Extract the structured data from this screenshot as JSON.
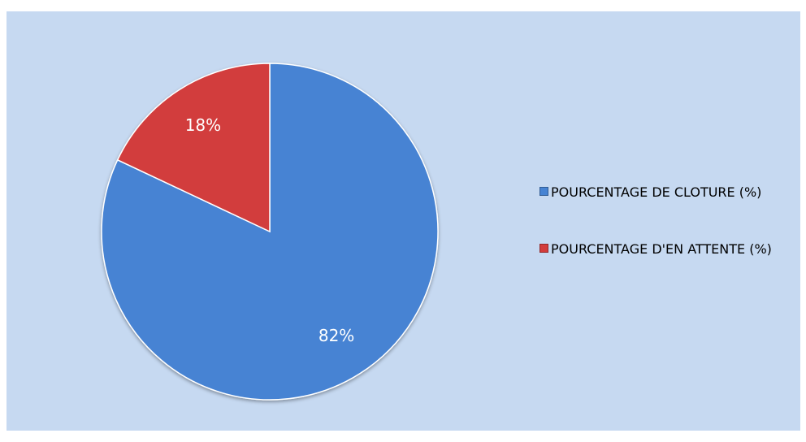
{
  "chart_data": {
    "type": "pie",
    "categories": [
      "POURCENTAGE DE CLOTURE (%)",
      "POURCENTAGE D'EN ATTENTE (%)"
    ],
    "values": [
      82,
      18
    ],
    "value_labels": [
      "82%",
      "18%"
    ],
    "colors": [
      "#4683d3",
      "#d23c3c"
    ],
    "legend": "right"
  }
}
